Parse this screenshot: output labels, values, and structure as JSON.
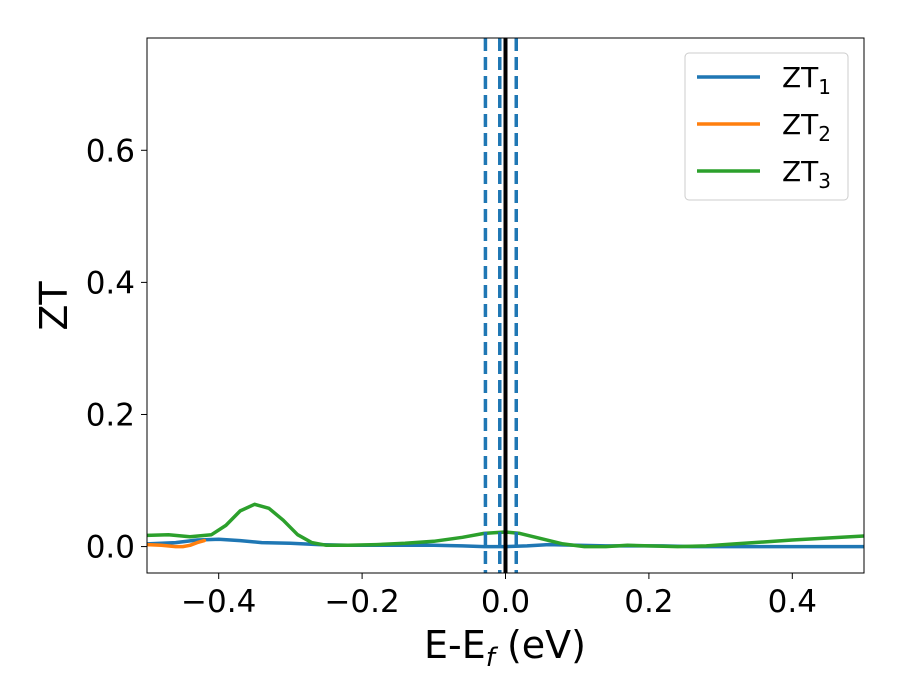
{
  "chart_data": {
    "type": "line",
    "xlabel": "E-E",
    "xlabel_sub": "f",
    "xlabel_unit": " (eV)",
    "ylabel": "ZT",
    "xlim": [
      -0.5,
      0.5
    ],
    "ylim": [
      -0.04,
      0.77
    ],
    "xticks": [
      -0.4,
      -0.2,
      0.0,
      0.2,
      0.4
    ],
    "xtick_labels": [
      "−0.4",
      "−0.2",
      "0.0",
      "0.2",
      "0.4"
    ],
    "yticks": [
      0.0,
      0.2,
      0.4,
      0.6
    ],
    "ytick_labels": [
      "0.0",
      "0.2",
      "0.4",
      "0.6"
    ],
    "grid": false,
    "legend_position": "top-right",
    "series": [
      {
        "name": "ZT",
        "name_sub": "1",
        "color": "#1f77b4",
        "x": [
          -0.5,
          -0.46,
          -0.43,
          -0.4,
          -0.37,
          -0.34,
          -0.3,
          -0.26,
          -0.22,
          -0.18,
          -0.14,
          -0.1,
          -0.06,
          -0.03,
          0.0,
          0.03,
          0.06,
          0.1,
          0.14,
          0.18,
          0.22,
          0.26,
          0.3,
          0.35,
          0.4,
          0.45,
          0.5
        ],
        "y": [
          0.004,
          0.006,
          0.01,
          0.011,
          0.009,
          0.006,
          0.005,
          0.003,
          0.002,
          0.002,
          0.002,
          0.002,
          0.001,
          0.0,
          0.0,
          0.001,
          0.003,
          0.002,
          0.001,
          0.001,
          0.001,
          0.0,
          0.0,
          0.0,
          0.0,
          0.0,
          0.0
        ]
      },
      {
        "name": "ZT",
        "name_sub": "2",
        "color": "#ff7f0e",
        "x": [
          -0.5,
          -0.48,
          -0.46,
          -0.45,
          -0.44,
          -0.43,
          -0.42
        ],
        "y": [
          0.003,
          0.002,
          0.0,
          0.0,
          0.002,
          0.006,
          0.009
        ]
      },
      {
        "name": "ZT",
        "name_sub": "3",
        "color": "#2ca02c",
        "x": [
          -0.5,
          -0.47,
          -0.44,
          -0.41,
          -0.39,
          -0.37,
          -0.35,
          -0.33,
          -0.31,
          -0.29,
          -0.27,
          -0.25,
          -0.22,
          -0.18,
          -0.14,
          -0.1,
          -0.06,
          -0.03,
          0.0,
          0.02,
          0.05,
          0.08,
          0.11,
          0.14,
          0.17,
          0.2,
          0.24,
          0.28,
          0.32,
          0.36,
          0.4,
          0.45,
          0.5
        ],
        "y": [
          0.017,
          0.018,
          0.015,
          0.018,
          0.032,
          0.054,
          0.064,
          0.058,
          0.04,
          0.018,
          0.006,
          0.002,
          0.002,
          0.003,
          0.005,
          0.008,
          0.014,
          0.02,
          0.022,
          0.02,
          0.012,
          0.004,
          0.0,
          0.0,
          0.002,
          0.001,
          0.0,
          0.001,
          0.004,
          0.007,
          0.01,
          0.013,
          0.016
        ]
      }
    ],
    "vlines": [
      {
        "x": 0.0,
        "style": "solid",
        "color": "#000000"
      },
      {
        "x": -0.028,
        "style": "dashed",
        "color": "#1f77b4"
      },
      {
        "x": -0.008,
        "style": "dashed",
        "color": "#1f77b4"
      },
      {
        "x": 0.015,
        "style": "dashed",
        "color": "#1f77b4"
      }
    ]
  }
}
